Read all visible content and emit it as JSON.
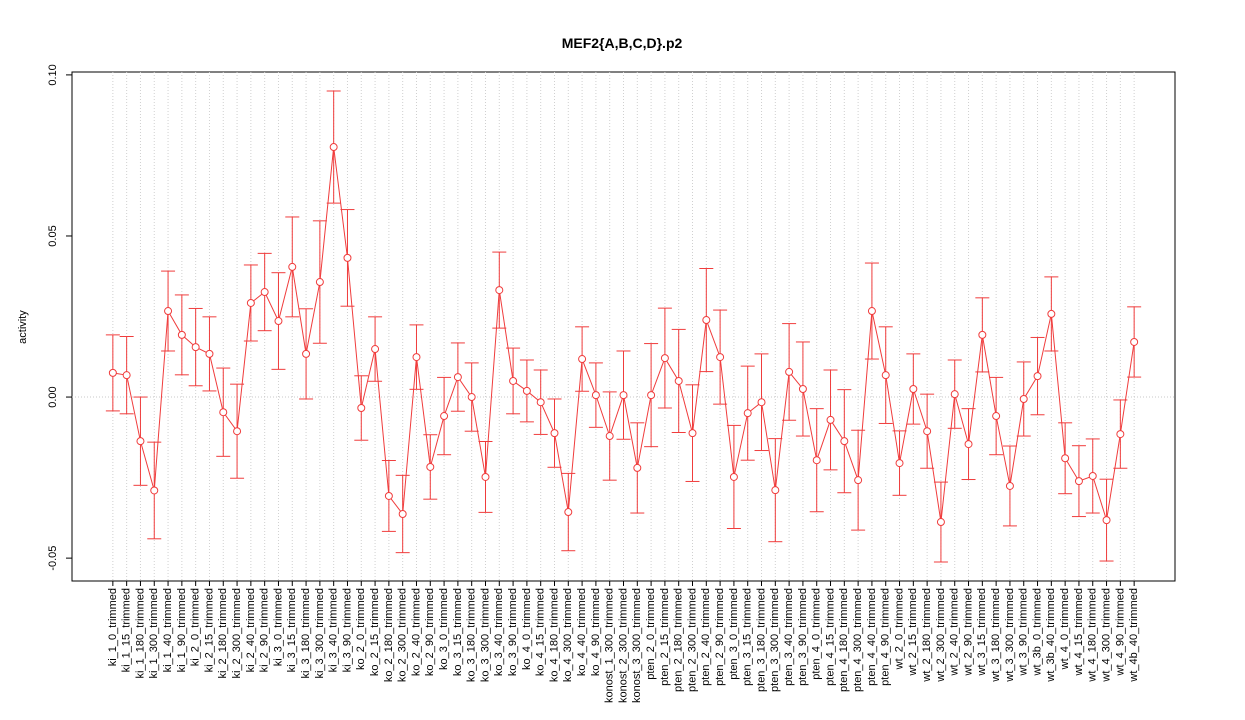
{
  "chart_data": {
    "type": "line",
    "title": "MEF2{A,B,C,D}.p2",
    "y_label": "activity",
    "color": "#f03c3c",
    "grid": true,
    "reference_line": 0,
    "ylim": [
      -0.0571,
      0.1009
    ],
    "yticks": [
      {
        "value": -0.05,
        "label": "-0.05"
      },
      {
        "value": 0,
        "label": "0.00"
      },
      {
        "value": 0.05,
        "label": "0.05"
      },
      {
        "value": 0.1,
        "label": "0.10"
      }
    ],
    "categories": [
      "ki_1_0_trimmed",
      "ki_1_15_trimmed",
      "ki_1_180_trimmed",
      "ki_1_300_trimmed",
      "ki_1_40_trimmed",
      "ki_1_90_trimmed",
      "ki_2_0_trimmed",
      "ki_2_15_trimmed",
      "ki_2_180_trimmed",
      "ki_2_300_trimmed",
      "ki_2_40_trimmed",
      "ki_2_90_trimmed",
      "ki_3_0_trimmed",
      "ki_3_15_trimmed",
      "ki_3_180_trimmed",
      "ki_3_300_trimmed",
      "ki_3_40_trimmed",
      "ki_3_90_trimmed",
      "ko_2_0_trimmed",
      "ko_2_15_trimmed",
      "ko_2_180_trimmed",
      "ko_2_300_trimmed",
      "ko_2_40_trimmed",
      "ko_2_90_trimmed",
      "ko_3_0_trimmed",
      "ko_3_15_trimmed",
      "ko_3_180_trimmed",
      "ko_3_300_trimmed",
      "ko_3_40_trimmed",
      "ko_3_90_trimmed",
      "ko_4_0_trimmed",
      "ko_4_15_trimmed",
      "ko_4_180_trimmed",
      "ko_4_300_trimmed",
      "ko_4_40_trimmed",
      "ko_4_90_trimmed",
      "konost_1_300_trimmed",
      "konost_2_300_trimmed",
      "konost_3_300_trimmed",
      "pten_2_0_trimmed",
      "pten_2_15_trimmed",
      "pten_2_180_trimmed",
      "pten_2_300_trimmed",
      "pten_2_40_trimmed",
      "pten_2_90_trimmed",
      "pten_3_0_trimmed",
      "pten_3_15_trimmed",
      "pten_3_180_trimmed",
      "pten_3_300_trimmed",
      "pten_3_40_trimmed",
      "pten_3_90_trimmed",
      "pten_4_0_trimmed",
      "pten_4_15_trimmed",
      "pten_4_180_trimmed",
      "pten_4_300_trimmed",
      "pten_4_40_trimmed",
      "pten_4_90_trimmed",
      "wt_2_0_trimmed",
      "wt_2_15_trimmed",
      "wt_2_180_trimmed",
      "wt_2_300_trimmed",
      "wt_2_40_trimmed",
      "wt_2_90_trimmed",
      "wt_3_15_trimmed",
      "wt_3_180_trimmed",
      "wt_3_300_trimmed",
      "wt_3_90_trimmed",
      "wt_3b_0_trimmed",
      "wt_3b_40_trimmed",
      "wt_4_0_trimmed",
      "wt_4_15_trimmed",
      "wt_4_180_trimmed",
      "wt_4_300_trimmed",
      "wt_4_90_trimmed",
      "wt_4b_40_trimmed"
    ],
    "values": [
      0.0075,
      0.0068,
      -0.0137,
      -0.029,
      0.0267,
      0.0193,
      0.0155,
      0.0134,
      -0.0047,
      -0.0106,
      0.0292,
      0.0326,
      0.0236,
      0.0404,
      0.0134,
      0.0357,
      0.0776,
      0.0432,
      -0.0034,
      0.0149,
      -0.0307,
      -0.0363,
      0.0124,
      -0.0217,
      -0.0059,
      0.0062,
      0.0,
      -0.0248,
      0.0332,
      0.005,
      0.0019,
      -0.0016,
      -0.0112,
      -0.0357,
      0.0118,
      0.0006,
      -0.0121,
      0.0006,
      -0.022,
      0.0006,
      0.0121,
      0.005,
      -0.0112,
      0.0239,
      0.0124,
      -0.0248,
      -0.005,
      -0.0016,
      -0.0289,
      0.0078,
      0.0025,
      -0.0196,
      -0.0071,
      -0.0137,
      -0.0258,
      0.0267,
      0.0068,
      -0.0205,
      0.0025,
      -0.0106,
      -0.0388,
      0.0009,
      -0.0146,
      0.0193,
      -0.0059,
      -0.0276,
      -0.0006,
      0.0065,
      0.0258,
      -0.019,
      -0.0261,
      -0.0245,
      -0.0382,
      -0.0115,
      0.0171
    ],
    "errors": [
      0.0118,
      0.012,
      0.0137,
      0.015,
      0.0124,
      0.0124,
      0.012,
      0.0115,
      0.0137,
      0.0146,
      0.0118,
      0.012,
      0.015,
      0.0155,
      0.014,
      0.019,
      0.0174,
      0.015,
      0.01,
      0.01,
      0.011,
      0.012,
      0.01,
      0.01,
      0.012,
      0.0106,
      0.0106,
      0.011,
      0.0118,
      0.0102,
      0.0096,
      0.01,
      0.0106,
      0.012,
      0.01,
      0.01,
      0.0137,
      0.0137,
      0.014,
      0.016,
      0.0155,
      0.016,
      0.015,
      0.016,
      0.0146,
      0.016,
      0.0146,
      0.015,
      0.016,
      0.015,
      0.0146,
      0.016,
      0.0155,
      0.016,
      0.0155,
      0.0149,
      0.015,
      0.01,
      0.0109,
      0.0115,
      0.0124,
      0.0106,
      0.011,
      0.0115,
      0.012,
      0.0124,
      0.0115,
      0.012,
      0.0115,
      0.011,
      0.011,
      0.0115,
      0.0127,
      0.0106,
      0.0109
    ]
  }
}
